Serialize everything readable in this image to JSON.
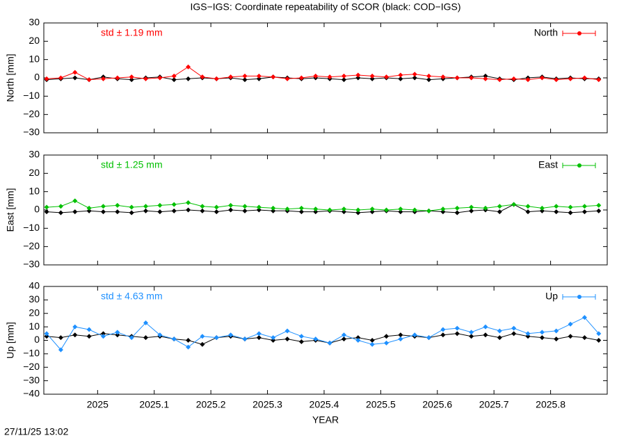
{
  "title": "IGS−IGS: Coordinate repeatability of SCOR (black: COD−IGS)",
  "timestamp": "27/11/25 13:02",
  "chart_data": [
    {
      "type": "line",
      "ylabel": "North [mm]",
      "annotation": "std ± 1.19 mm",
      "xlim": [
        2024.905,
        2025.9
      ],
      "xticks": [
        2025,
        2025.1,
        2025.2,
        2025.3,
        2025.4,
        2025.5,
        2025.6,
        2025.7,
        2025.8
      ],
      "ylim": [
        -30,
        30
      ],
      "yticks": [
        {
          "value": -30,
          "label": "−30"
        },
        {
          "value": -20,
          "label": "−20"
        },
        {
          "value": -10,
          "label": "−10"
        },
        0,
        10,
        20,
        30
      ],
      "legend": "upper right",
      "x": [
        2024.91,
        2024.935,
        2024.96,
        2024.985,
        2025.01,
        2025.035,
        2025.06,
        2025.085,
        2025.11,
        2025.135,
        2025.16,
        2025.185,
        2025.21,
        2025.235,
        2025.26,
        2025.285,
        2025.31,
        2025.335,
        2025.36,
        2025.385,
        2025.41,
        2025.435,
        2025.46,
        2025.485,
        2025.51,
        2025.535,
        2025.56,
        2025.585,
        2025.61,
        2025.635,
        2025.66,
        2025.685,
        2025.71,
        2025.735,
        2025.76,
        2025.785,
        2025.81,
        2025.835,
        2025.86,
        2025.885
      ],
      "series": [
        {
          "color": "#000000",
          "values": [
            -1,
            -0.5,
            0,
            -1,
            0.5,
            -0.5,
            -1,
            0,
            0.5,
            -1,
            -0.5,
            0,
            -0.5,
            0,
            -1,
            -0.5,
            0.5,
            0,
            -0.5,
            0,
            -0.5,
            -1,
            0,
            -0.5,
            0,
            -0.5,
            0,
            -1,
            -0.5,
            0,
            0.5,
            1,
            -0.5,
            -1,
            0,
            0.5,
            -0.5,
            0,
            -0.5,
            -0.5
          ]
        },
        {
          "name": "North",
          "color": "#ff0000",
          "values": [
            -0.5,
            0,
            3,
            -1,
            -0.5,
            0,
            0.5,
            -0.5,
            0,
            1,
            6,
            0.5,
            -0.5,
            0.5,
            1,
            1,
            0.5,
            -0.5,
            0,
            1,
            0.5,
            1,
            1.5,
            1,
            0.5,
            1.5,
            2,
            1,
            0.5,
            0,
            0,
            -0.5,
            -1,
            -0.5,
            -1,
            0,
            -1,
            -0.5,
            0,
            -1
          ]
        }
      ]
    },
    {
      "type": "line",
      "ylabel": "East [mm]",
      "annotation": "std ± 1.25 mm",
      "xlim": [
        2024.905,
        2025.9
      ],
      "xticks": [
        2025,
        2025.1,
        2025.2,
        2025.3,
        2025.4,
        2025.5,
        2025.6,
        2025.7,
        2025.8
      ],
      "ylim": [
        -30,
        30
      ],
      "yticks": [
        {
          "value": -30,
          "label": "−30"
        },
        {
          "value": -20,
          "label": "−20"
        },
        {
          "value": -10,
          "label": "−10"
        },
        0,
        10,
        20,
        30
      ],
      "legend": "upper right",
      "x": [
        2024.91,
        2024.935,
        2024.96,
        2024.985,
        2025.01,
        2025.035,
        2025.06,
        2025.085,
        2025.11,
        2025.135,
        2025.16,
        2025.185,
        2025.21,
        2025.235,
        2025.26,
        2025.285,
        2025.31,
        2025.335,
        2025.36,
        2025.385,
        2025.41,
        2025.435,
        2025.46,
        2025.485,
        2025.51,
        2025.535,
        2025.56,
        2025.585,
        2025.61,
        2025.635,
        2025.66,
        2025.685,
        2025.71,
        2025.735,
        2025.76,
        2025.785,
        2025.81,
        2025.835,
        2025.86,
        2025.885
      ],
      "series": [
        {
          "color": "#000000",
          "values": [
            -1,
            -1.5,
            -1,
            -0.5,
            -1,
            -1,
            -1.5,
            -0.5,
            -1,
            -0.5,
            0,
            -0.5,
            -1,
            0,
            -0.5,
            0,
            -0.5,
            -0.5,
            -1,
            -1,
            -0.5,
            -1,
            -1.5,
            -1,
            -0.5,
            -1,
            -1,
            -0.5,
            -1,
            -1.5,
            -0.5,
            0,
            -1,
            3,
            -1,
            -0.5,
            -1,
            -1.5,
            -1,
            -0.5
          ]
        },
        {
          "name": "East",
          "color": "#00c000",
          "values": [
            1.5,
            2,
            5,
            1,
            2,
            2.5,
            1.5,
            2,
            2.5,
            3,
            4,
            2,
            1.5,
            2.5,
            2,
            1.5,
            1,
            0.5,
            1,
            0.5,
            0,
            0.5,
            0,
            0.5,
            0,
            0.5,
            0,
            -0.5,
            0.5,
            1,
            1.5,
            1,
            2,
            3,
            2,
            1,
            2,
            1.5,
            2,
            2.5
          ]
        }
      ]
    },
    {
      "type": "line",
      "ylabel": "Up [mm]",
      "annotation": "std ± 4.63 mm",
      "xlabel": "YEAR",
      "xlim": [
        2024.905,
        2025.9
      ],
      "xticks": [
        2025,
        2025.1,
        2025.2,
        2025.3,
        2025.4,
        2025.5,
        2025.6,
        2025.7,
        2025.8
      ],
      "ylim": [
        -40,
        40
      ],
      "yticks": [
        {
          "value": -40,
          "label": "−40"
        },
        {
          "value": -30,
          "label": "−30"
        },
        {
          "value": -20,
          "label": "−20"
        },
        {
          "value": -10,
          "label": "−10"
        },
        0,
        10,
        20,
        30,
        40
      ],
      "legend": "upper right",
      "x": [
        2024.91,
        2024.935,
        2024.96,
        2024.985,
        2025.01,
        2025.035,
        2025.06,
        2025.085,
        2025.11,
        2025.135,
        2025.16,
        2025.185,
        2025.21,
        2025.235,
        2025.26,
        2025.285,
        2025.31,
        2025.335,
        2025.36,
        2025.385,
        2025.41,
        2025.435,
        2025.46,
        2025.485,
        2025.51,
        2025.535,
        2025.56,
        2025.585,
        2025.61,
        2025.635,
        2025.66,
        2025.685,
        2025.71,
        2025.735,
        2025.76,
        2025.785,
        2025.81,
        2025.835,
        2025.86,
        2025.885
      ],
      "series": [
        {
          "color": "#000000",
          "values": [
            3,
            2,
            4,
            3,
            5,
            4,
            3,
            2,
            3,
            1,
            0,
            -3,
            2,
            3,
            1,
            2,
            0,
            1,
            -1,
            0,
            -2,
            1,
            2,
            0,
            3,
            4,
            3,
            2,
            4,
            5,
            3,
            4,
            2,
            5,
            3,
            2,
            1,
            3,
            2,
            0
          ]
        },
        {
          "name": "Up",
          "color": "#1e90ff",
          "values": [
            5,
            -7,
            10,
            8,
            3,
            6,
            2,
            13,
            4,
            1,
            -5,
            3,
            2,
            4,
            1,
            5,
            2,
            7,
            3,
            1,
            -2,
            4,
            0,
            -3,
            -2,
            1,
            4,
            2,
            8,
            9,
            6,
            10,
            7,
            9,
            5,
            6,
            7,
            12,
            17,
            5
          ]
        }
      ]
    }
  ]
}
